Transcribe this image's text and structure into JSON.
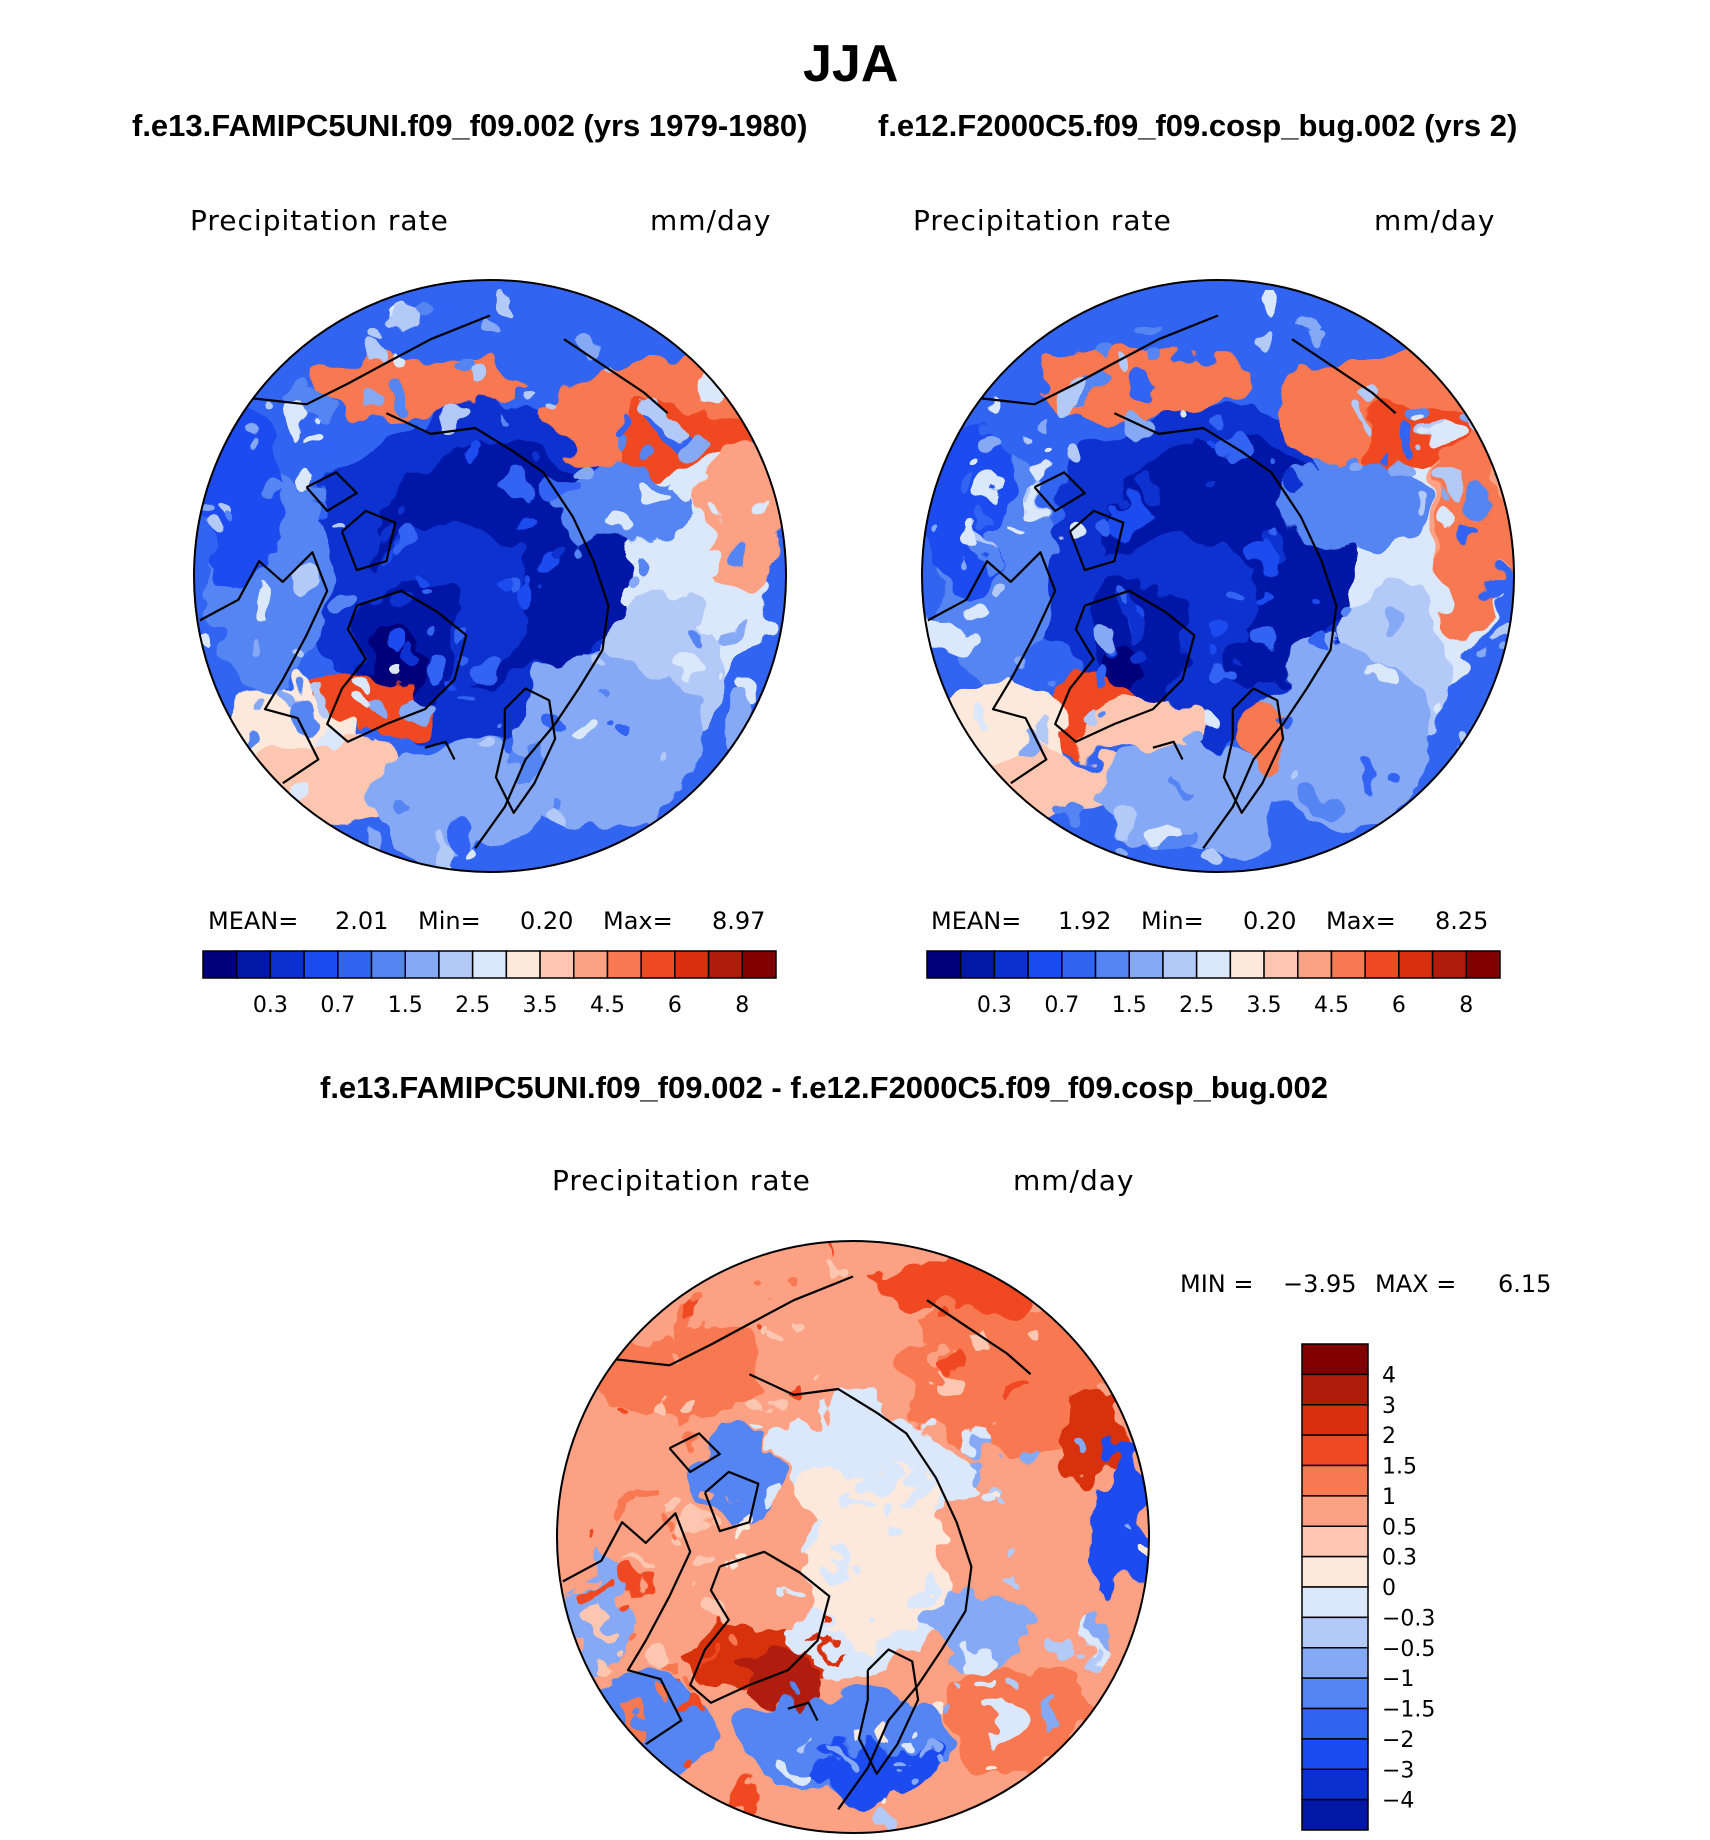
{
  "figure": {
    "title": "JJA",
    "diff_title": "f.e13.FAMIPC5UNI.f09_f09.002 - f.e12.F2000C5.f09_f09.cosp_bug.002"
  },
  "colors": {
    "abs": [
      "#02007a",
      "#0317a6",
      "#0a31d0",
      "#1a4cf0",
      "#3264f2",
      "#5585f3",
      "#86a9f6",
      "#b3c9f8",
      "#dbe8fc",
      "#fde8dc",
      "#fdc6b0",
      "#fca183",
      "#f87851",
      "#f04a22",
      "#d8300f",
      "#b01c0a",
      "#800000"
    ],
    "diff": [
      "#02007a",
      "#0317a6",
      "#0a31d0",
      "#1a4cf0",
      "#3264f2",
      "#5585f3",
      "#86a9f6",
      "#b3c9f8",
      "#dbe8fc",
      "#fde8dc",
      "#fdc6b0",
      "#fca183",
      "#f87851",
      "#f04a22",
      "#d8300f",
      "#b01c0a",
      "#800000"
    ],
    "coast": "#000000"
  },
  "chart_data": [
    {
      "type": "heatmap",
      "id": "left",
      "case": "f.e13.FAMIPC5UNI.f09_f09.002 (yrs 1979-1980)",
      "variable": "Precipitation rate",
      "units": "mm/day",
      "projection": "north polar stereographic",
      "stats": {
        "mean_label": "MEAN=",
        "mean": "2.01",
        "min_label": "Min=",
        "min": "0.20",
        "max_label": "Max=",
        "max": "8.97"
      },
      "levels": [
        0.2,
        0.3,
        0.5,
        0.7,
        1,
        1.5,
        2,
        2.5,
        3,
        3.5,
        4,
        4.5,
        5,
        6,
        7,
        8
      ],
      "tick_labels": [
        "0.3",
        "0.7",
        "1.5",
        "2.5",
        "3.5",
        "4.5",
        "6",
        "8"
      ],
      "tick_levels": [
        0.3,
        0.7,
        1.5,
        2.5,
        3.5,
        4.5,
        6,
        8
      ]
    },
    {
      "type": "heatmap",
      "id": "right",
      "case": "f.e12.F2000C5.f09_f09.cosp_bug.002 (yrs 2)",
      "variable": "Precipitation rate",
      "units": "mm/day",
      "projection": "north polar stereographic",
      "stats": {
        "mean_label": "MEAN=",
        "mean": "1.92",
        "min_label": "Min=",
        "min": "0.20",
        "max_label": "Max=",
        "max": "8.25"
      },
      "levels": [
        0.2,
        0.3,
        0.5,
        0.7,
        1,
        1.5,
        2,
        2.5,
        3,
        3.5,
        4,
        4.5,
        5,
        6,
        7,
        8
      ],
      "tick_labels": [
        "0.3",
        "0.7",
        "1.5",
        "2.5",
        "3.5",
        "4.5",
        "6",
        "8"
      ],
      "tick_levels": [
        0.3,
        0.7,
        1.5,
        2.5,
        3.5,
        4.5,
        6,
        8
      ]
    },
    {
      "type": "heatmap",
      "id": "diff",
      "variable": "Precipitation rate",
      "units": "mm/day",
      "projection": "north polar stereographic",
      "stats": {
        "min_label": "MIN =",
        "min": "−3.95",
        "max_label": "MAX =",
        "max": "6.15"
      },
      "levels": [
        -4,
        -3,
        -2,
        -1.5,
        -1,
        -0.5,
        -0.3,
        0,
        0.3,
        0.5,
        1,
        1.5,
        2,
        3,
        4
      ],
      "tick_labels": [
        "4",
        "3",
        "2",
        "1.5",
        "1",
        "0.5",
        "0.3",
        "0",
        "−0.3",
        "−0.5",
        "−1",
        "−1.5",
        "−2",
        "−3",
        "−4"
      ]
    }
  ]
}
